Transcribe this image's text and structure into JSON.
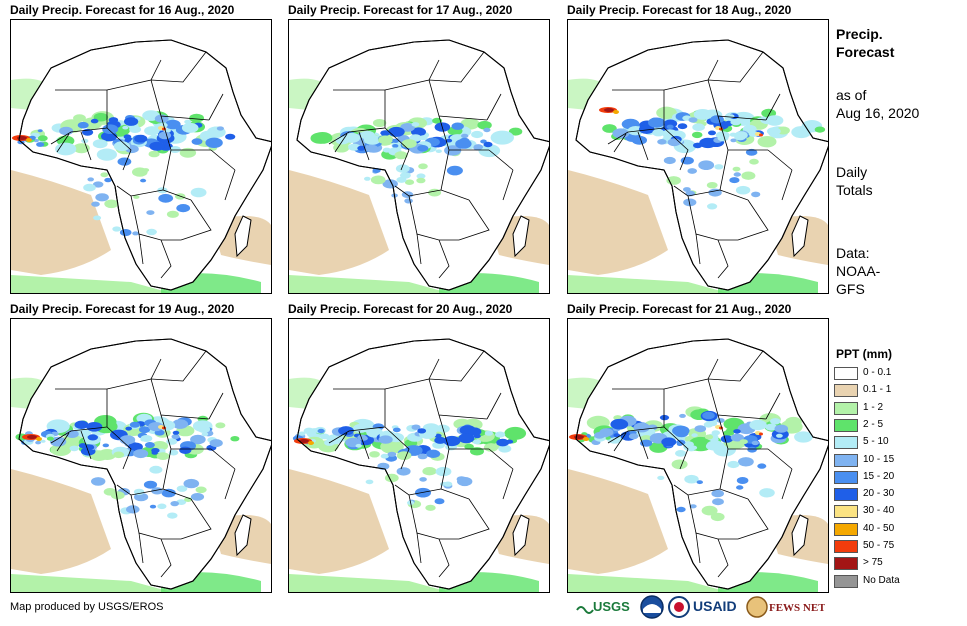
{
  "panels": [
    {
      "title": "Daily Precip. Forecast for 16 Aug., 2020"
    },
    {
      "title": "Daily Precip. Forecast for 17 Aug., 2020"
    },
    {
      "title": "Daily Precip. Forecast for 18 Aug., 2020"
    },
    {
      "title": "Daily Precip. Forecast for 19 Aug., 2020"
    },
    {
      "title": "Daily Precip. Forecast for 20 Aug., 2020"
    },
    {
      "title": "Daily Precip. Forecast for 21 Aug., 2020"
    }
  ],
  "sidebar": {
    "heading_line1": "Precip.",
    "heading_line2": "Forecast",
    "asof_line1": "as of",
    "asof_line2": "Aug 16, 2020",
    "totals_line1": "Daily",
    "totals_line2": "Totals",
    "data_line1": "Data:",
    "data_line2": "NOAA-",
    "data_line3": "GFS"
  },
  "legend": {
    "title": "PPT (mm)",
    "items": [
      {
        "label": "0 - 0.1",
        "color": "#ffffff"
      },
      {
        "label": "0.1 - 1",
        "color": "#e9d3b1"
      },
      {
        "label": "1 - 2",
        "color": "#b3f2a9"
      },
      {
        "label": "2 - 5",
        "color": "#5fe36b"
      },
      {
        "label": "5 - 10",
        "color": "#b3ecf6"
      },
      {
        "label": "10 - 15",
        "color": "#7fb3f1"
      },
      {
        "label": "15 - 20",
        "color": "#4a8ff0"
      },
      {
        "label": "20 - 30",
        "color": "#1f5fe8"
      },
      {
        "label": "30 - 40",
        "color": "#fbe383"
      },
      {
        "label": "40 - 50",
        "color": "#f5a800"
      },
      {
        "label": "50 - 75",
        "color": "#f23c0c"
      },
      {
        "label": "> 75",
        "color": "#a31515"
      },
      {
        "label": "No Data",
        "color": "#959595"
      }
    ]
  },
  "credit": "Map produced by USGS/EROS",
  "logos": {
    "usgs": "USGS",
    "usaid": "USAID",
    "fewsnet": "FEWS NET"
  }
}
